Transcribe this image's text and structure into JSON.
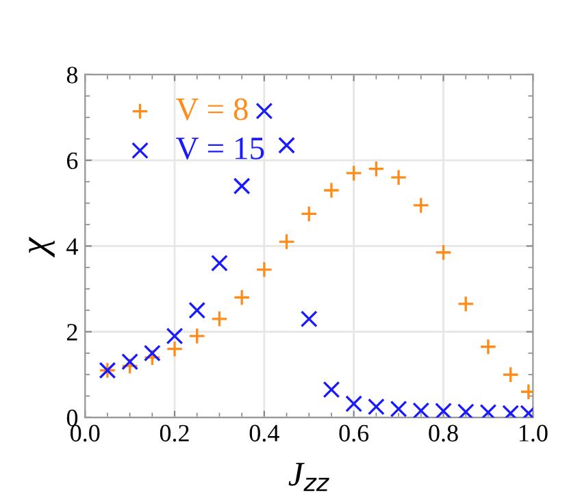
{
  "chart_data": {
    "type": "scatter",
    "xlabel": "J$_{zz}$",
    "ylabel": "χ",
    "x": [
      0.05,
      0.1,
      0.15,
      0.2,
      0.25,
      0.3,
      0.35,
      0.4,
      0.45,
      0.5,
      0.55,
      0.6,
      0.65,
      0.7,
      0.75,
      0.8,
      0.85,
      0.9,
      0.95,
      0.99
    ],
    "series": [
      {
        "name": "V = 8",
        "color": "#ff8c1a",
        "marker": "plus",
        "values": [
          1.1,
          1.2,
          1.4,
          1.6,
          1.9,
          2.3,
          2.8,
          3.45,
          4.1,
          4.75,
          5.3,
          5.7,
          5.8,
          5.6,
          4.95,
          3.85,
          2.65,
          1.65,
          1.0,
          0.6
        ]
      },
      {
        "name": "V = 15",
        "color": "#1a1aff",
        "marker": "cross",
        "values": [
          1.1,
          1.3,
          1.5,
          1.9,
          2.5,
          3.6,
          5.4,
          7.15,
          6.35,
          2.3,
          0.65,
          0.32,
          0.25,
          0.2,
          0.16,
          0.15,
          0.13,
          0.12,
          0.1,
          0.1
        ]
      }
    ],
    "xlim": [
      0,
      1
    ],
    "xticks": [
      {
        "value": 0,
        "label": "0.0"
      },
      0.2,
      0.4,
      0.6,
      0.8,
      {
        "value": 1,
        "label": "1.0"
      }
    ],
    "ylim": [
      0,
      8
    ],
    "yticks": [
      0,
      2,
      4,
      6,
      8
    ],
    "grid": true,
    "legend": "top left"
  }
}
